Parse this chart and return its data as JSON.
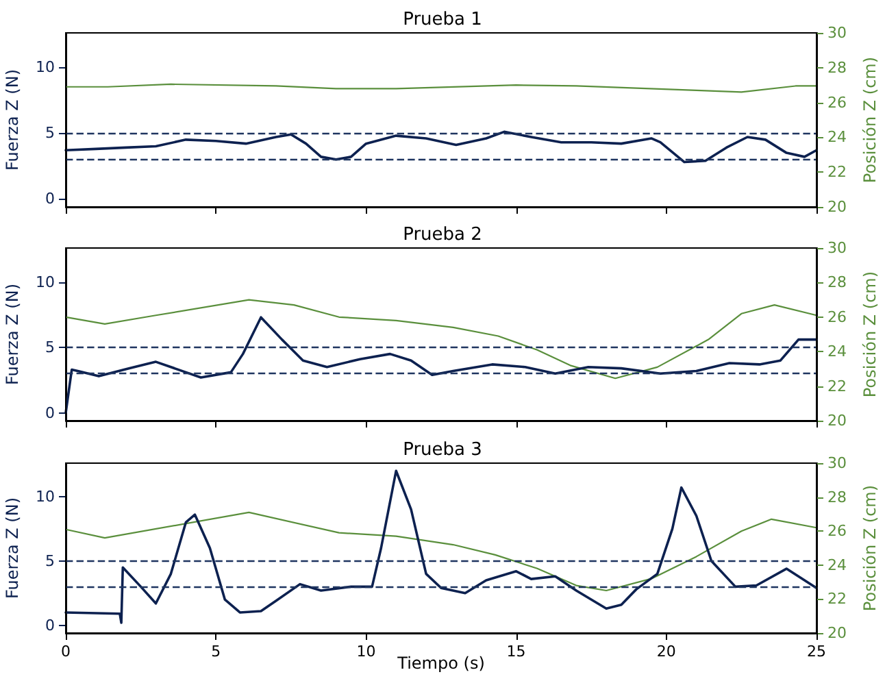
{
  "chart_data": [
    {
      "type": "line",
      "title": "Prueba 1",
      "ylabel": "Fuerza Z (N)",
      "y2label": "Posición Z (cm)",
      "xlim": [
        0,
        25
      ],
      "xticks": [
        0,
        5,
        10,
        15,
        20,
        25
      ],
      "ylim": [
        -0.6,
        12.6
      ],
      "yticks": [
        0,
        5,
        10
      ],
      "y2lim": [
        20,
        30
      ],
      "y2ticks": [
        20,
        22,
        24,
        26,
        28,
        30
      ],
      "tick_labels": "y",
      "grid": false,
      "ref_lines": [
        {
          "axis": "y",
          "value": 5,
          "color": "#1f3560",
          "line_style": "dashed"
        },
        {
          "axis": "y",
          "value": 3,
          "color": "#1f3560",
          "line_style": "dashed"
        }
      ],
      "series": [
        {
          "color": "#0d2150",
          "x": [
            0,
            1,
            2,
            3,
            4,
            5,
            6,
            7,
            7.5,
            8,
            8.5,
            9,
            9.5,
            10,
            11,
            12,
            13,
            14,
            14.6,
            15.5,
            16.5,
            17.5,
            18.5,
            19.5,
            19.8,
            20.6,
            21.3,
            22,
            22.7,
            23.3,
            24,
            24.6,
            25
          ],
          "values": [
            3.7,
            3.8,
            3.9,
            4.0,
            4.5,
            4.4,
            4.2,
            4.7,
            4.9,
            4.2,
            3.2,
            3.0,
            3.2,
            4.2,
            4.8,
            4.6,
            4.1,
            4.6,
            5.1,
            4.7,
            4.3,
            4.3,
            4.2,
            4.6,
            4.3,
            2.8,
            2.9,
            3.9,
            4.7,
            4.5,
            3.5,
            3.2,
            3.7
          ]
        },
        {
          "color": "#5a8f3c",
          "axis": "y2",
          "x": [
            0,
            1.4,
            3.5,
            7,
            9,
            11,
            15,
            17,
            21,
            22.5,
            24.3,
            25
          ],
          "values": [
            26.9,
            26.9,
            27.05,
            26.95,
            26.8,
            26.8,
            27.0,
            26.95,
            26.7,
            26.6,
            26.95,
            26.95
          ]
        }
      ]
    },
    {
      "type": "line",
      "title": "Prueba 2",
      "ylabel": "Fuerza Z (N)",
      "y2label": "Posición Z (cm)",
      "xlim": [
        0,
        25
      ],
      "xticks": [
        0,
        5,
        10,
        15,
        20,
        25
      ],
      "ylim": [
        -0.6,
        12.6
      ],
      "yticks": [
        0,
        5,
        10
      ],
      "y2lim": [
        20,
        30
      ],
      "y2ticks": [
        20,
        22,
        24,
        26,
        28,
        30
      ],
      "tick_labels": "y",
      "grid": false,
      "ref_lines": [
        {
          "axis": "y",
          "value": 5,
          "color": "#1f3560",
          "line_style": "dashed"
        },
        {
          "axis": "y",
          "value": 3,
          "color": "#1f3560",
          "line_style": "dashed"
        }
      ],
      "series": [
        {
          "color": "#0d2150",
          "x": [
            0,
            0.2,
            0.4,
            1.1,
            2.1,
            3.0,
            4.0,
            4.5,
            5.5,
            5.9,
            6.5,
            7.2,
            7.9,
            8.7,
            9.8,
            10.8,
            11.5,
            12.2,
            12.9,
            14.2,
            15.3,
            16.3,
            17.4,
            18.5,
            19.8,
            21.0,
            22.1,
            23.1,
            23.8,
            24.4,
            25
          ],
          "values": [
            0,
            3.3,
            3.2,
            2.8,
            3.4,
            3.9,
            3.1,
            2.7,
            3.1,
            4.5,
            7.3,
            5.6,
            4.0,
            3.5,
            4.1,
            4.5,
            4.0,
            2.9,
            3.2,
            3.7,
            3.5,
            3.0,
            3.5,
            3.4,
            3.0,
            3.2,
            3.8,
            3.7,
            4.0,
            5.6,
            5.6
          ]
        },
        {
          "color": "#5a8f3c",
          "axis": "y2",
          "x": [
            0,
            1.3,
            3.0,
            6.1,
            7.6,
            9.1,
            11.0,
            12.9,
            14.4,
            15.7,
            16.8,
            18.3,
            19.7,
            21.4,
            22.5,
            23.6,
            25
          ],
          "values": [
            26.0,
            25.6,
            26.1,
            27.0,
            26.7,
            26.0,
            25.8,
            25.4,
            24.9,
            24.1,
            23.2,
            22.45,
            23.1,
            24.7,
            26.2,
            26.7,
            26.1
          ]
        }
      ]
    },
    {
      "type": "line",
      "title": "Prueba 3",
      "xlabel": "Tiempo (s)",
      "ylabel": "Fuerza Z (N)",
      "y2label": "Posición Z (cm)",
      "xlim": [
        0,
        25
      ],
      "xticks": [
        0,
        5,
        10,
        15,
        20,
        25
      ],
      "ylim": [
        -0.6,
        12.6
      ],
      "yticks": [
        0,
        5,
        10
      ],
      "y2lim": [
        20,
        30
      ],
      "y2ticks": [
        20,
        22,
        24,
        26,
        28,
        30
      ],
      "grid": false,
      "ref_lines": [
        {
          "axis": "y",
          "value": 5,
          "color": "#1f3560",
          "line_style": "dashed"
        },
        {
          "axis": "y",
          "value": 3,
          "color": "#1f3560",
          "line_style": "dashed"
        }
      ],
      "series": [
        {
          "color": "#0d2150",
          "x": [
            0,
            1.8,
            1.85,
            1.9,
            2.5,
            3.0,
            3.5,
            4.0,
            4.3,
            4.8,
            5.3,
            5.8,
            6.5,
            7.0,
            7.8,
            8.5,
            9.5,
            10.2,
            10.5,
            11.0,
            11.5,
            12.0,
            12.5,
            13.3,
            14,
            15,
            15.5,
            16.3,
            17,
            18,
            18.5,
            19,
            19.7,
            20.2,
            20.5,
            21.0,
            21.5,
            22.3,
            23,
            24,
            25
          ],
          "values": [
            1.0,
            0.9,
            0.2,
            4.5,
            3.0,
            1.7,
            4.0,
            8.0,
            8.6,
            6.0,
            2.0,
            1.0,
            1.1,
            1.9,
            3.2,
            2.7,
            3.0,
            3.0,
            6.0,
            12.0,
            9.0,
            4.0,
            2.9,
            2.5,
            3.5,
            4.2,
            3.6,
            3.8,
            2.7,
            1.3,
            1.6,
            2.8,
            4.0,
            7.5,
            10.7,
            8.5,
            5.0,
            3.0,
            3.1,
            4.4,
            2.9
          ]
        },
        {
          "color": "#5a8f3c",
          "axis": "y2",
          "x": [
            0,
            1.3,
            6.1,
            9.1,
            11,
            12.9,
            14.3,
            15.7,
            17,
            18,
            19.5,
            21,
            22.5,
            23.5,
            25
          ],
          "values": [
            26.1,
            25.6,
            27.1,
            25.9,
            25.7,
            25.2,
            24.6,
            23.8,
            22.8,
            22.5,
            23.2,
            24.5,
            26.0,
            26.7,
            26.2
          ]
        }
      ]
    }
  ]
}
